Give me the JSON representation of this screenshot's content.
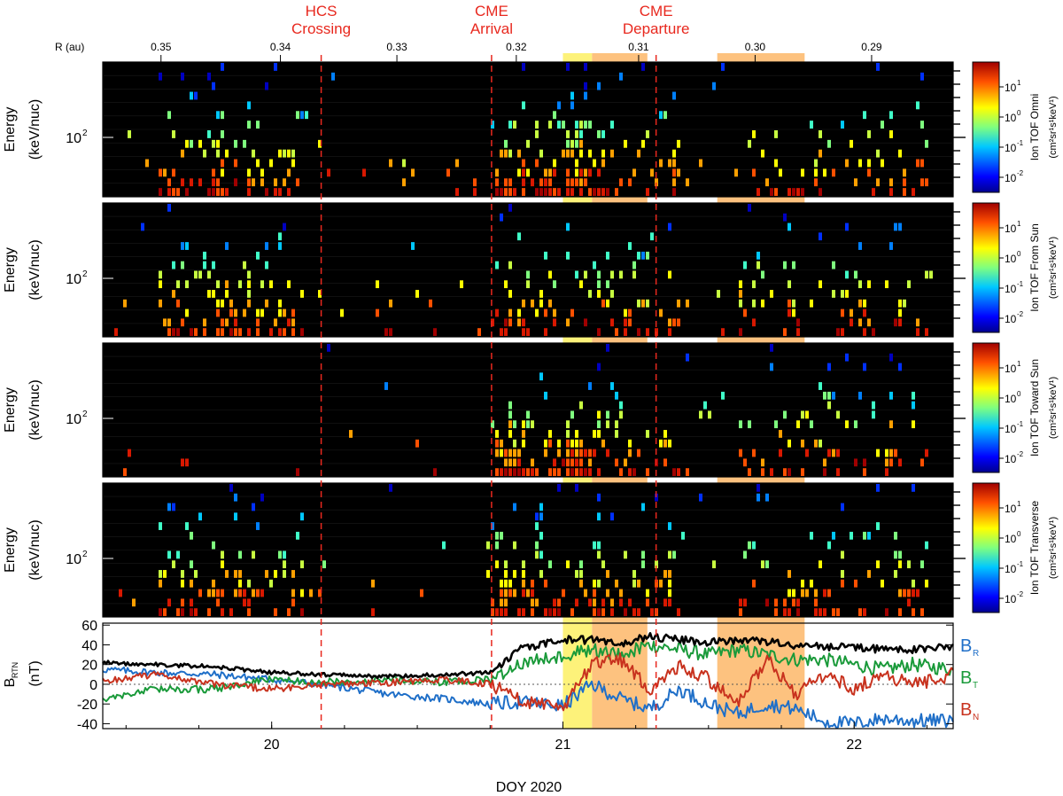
{
  "annotations": [
    {
      "line1": "HCS",
      "line2": "Crossing",
      "doy": 20.17
    },
    {
      "line1": "CME",
      "line2": "Arrival",
      "doy": 20.755
    },
    {
      "line1": "CME",
      "line2": "Departure",
      "doy": 21.32
    }
  ],
  "colors": {
    "annotation": "#e8281e",
    "shade_yellow": "#fdf27a",
    "shade_orange": "#fdc27f",
    "panel_bg": "#000000",
    "BR": "#1f6fc8",
    "BT": "#1a9a3a",
    "BN": "#c8321e",
    "Bmag": "#000000"
  },
  "shaded_intervals": [
    {
      "start": 21.0,
      "end": 21.1,
      "color": "shade_yellow"
    },
    {
      "start": 21.1,
      "end": 21.29,
      "color": "shade_orange"
    },
    {
      "start": 21.53,
      "end": 21.83,
      "color": "shade_orange"
    }
  ],
  "x_axis": {
    "label": "DOY 2020",
    "xlim": [
      19.42,
      22.34
    ],
    "ticks": [
      20,
      21,
      22
    ]
  },
  "r_axis": {
    "label": "R (au)",
    "ticks": [
      {
        "label": "0.35",
        "doy": 19.62
      },
      {
        "label": "0.34",
        "doy": 20.03
      },
      {
        "label": "0.33",
        "doy": 20.43
      },
      {
        "label": "0.32",
        "doy": 20.84
      },
      {
        "label": "0.31",
        "doy": 21.26
      },
      {
        "label": "0.30",
        "doy": 21.66
      },
      {
        "label": "0.29",
        "doy": 22.06
      }
    ]
  },
  "spectrograms": [
    {
      "id": "omni",
      "ylabel1": "Energy",
      "ylabel2": "(keV/nuc)",
      "ytick": "10",
      "ytick_exp": "2",
      "cbar_label": "Ion TOF Omni",
      "cbar_unit": "(cm²sr¹s¹keV¹)",
      "cbar_ticks": [
        {
          "base": "10",
          "exp": "1"
        },
        {
          "base": "10",
          "exp": "0"
        },
        {
          "base": "10",
          "exp": "-1"
        },
        {
          "base": "10",
          "exp": "-2"
        }
      ]
    },
    {
      "id": "fromsun",
      "ylabel1": "Energy",
      "ylabel2": "(keV/nuc)",
      "ytick": "10",
      "ytick_exp": "2",
      "cbar_label": "Ion TOF From Sun",
      "cbar_unit": "(cm²sr¹s¹keV¹)",
      "cbar_ticks": [
        {
          "base": "10",
          "exp": "1"
        },
        {
          "base": "10",
          "exp": "0"
        },
        {
          "base": "10",
          "exp": "-1"
        },
        {
          "base": "10",
          "exp": "-2"
        }
      ]
    },
    {
      "id": "towardsun",
      "ylabel1": "Energy",
      "ylabel2": "(keV/nuc)",
      "ytick": "10",
      "ytick_exp": "2",
      "cbar_label": "Ion TOF Toward Sun",
      "cbar_unit": "(cm²sr¹s¹keV¹)",
      "cbar_ticks": [
        {
          "base": "10",
          "exp": "1"
        },
        {
          "base": "10",
          "exp": "0"
        },
        {
          "base": "10",
          "exp": "-1"
        },
        {
          "base": "10",
          "exp": "-2"
        }
      ]
    },
    {
      "id": "transverse",
      "ylabel1": "Energy",
      "ylabel2": "(keV/nuc)",
      "ytick": "10",
      "ytick_exp": "2",
      "cbar_label": "Ion TOF Transverse",
      "cbar_unit": "(cm²sr¹s¹keV¹)",
      "cbar_ticks": [
        {
          "base": "10",
          "exp": "1"
        },
        {
          "base": "10",
          "exp": "0"
        },
        {
          "base": "10",
          "exp": "-1"
        },
        {
          "base": "10",
          "exp": "-2"
        }
      ]
    }
  ],
  "mag_panel": {
    "ylabel1": "B",
    "ylabel1_sub": "RTN",
    "ylabel2": "(nT)",
    "ylim": [
      -45,
      62
    ],
    "yticks": [
      60,
      40,
      20,
      0,
      -20,
      -40
    ],
    "legend": [
      {
        "base": "B",
        "sub": "R",
        "color": "BR"
      },
      {
        "base": "B",
        "sub": "T",
        "color": "BT"
      },
      {
        "base": "B",
        "sub": "N",
        "color": "BN"
      }
    ]
  },
  "chart_data": {
    "type": "line",
    "title": "",
    "xlabel": "DOY 2020",
    "ylabel": "B_RTN (nT)",
    "ylim": [
      -45,
      62
    ],
    "x": [
      19.42,
      19.6,
      19.8,
      20.0,
      20.17,
      20.4,
      20.6,
      20.75,
      20.85,
      21.0,
      21.1,
      21.2,
      21.3,
      21.4,
      21.5,
      21.6,
      21.7,
      21.8,
      21.9,
      22.0,
      22.1,
      22.2,
      22.34
    ],
    "series": [
      {
        "name": "B_R",
        "values": [
          15,
          12,
          10,
          5,
          0,
          -10,
          -15,
          -20,
          -18,
          -22,
          0,
          -15,
          -25,
          -5,
          -20,
          -30,
          -20,
          -25,
          -38,
          -40,
          -35,
          -37,
          -37
        ]
      },
      {
        "name": "B_T",
        "values": [
          -15,
          -5,
          -5,
          5,
          2,
          5,
          2,
          5,
          20,
          30,
          35,
          30,
          40,
          35,
          30,
          35,
          30,
          25,
          25,
          20,
          15,
          20,
          15
        ]
      },
      {
        "name": "B_N",
        "values": [
          3,
          10,
          0,
          -5,
          0,
          2,
          5,
          0,
          -15,
          -25,
          20,
          25,
          -5,
          20,
          5,
          -20,
          25,
          -10,
          10,
          -5,
          10,
          0,
          10
        ]
      },
      {
        "name": "|B|",
        "values": [
          22,
          20,
          18,
          12,
          10,
          8,
          10,
          12,
          35,
          45,
          45,
          42,
          48,
          45,
          43,
          45,
          43,
          40,
          38,
          38,
          35,
          35,
          38
        ]
      }
    ]
  }
}
